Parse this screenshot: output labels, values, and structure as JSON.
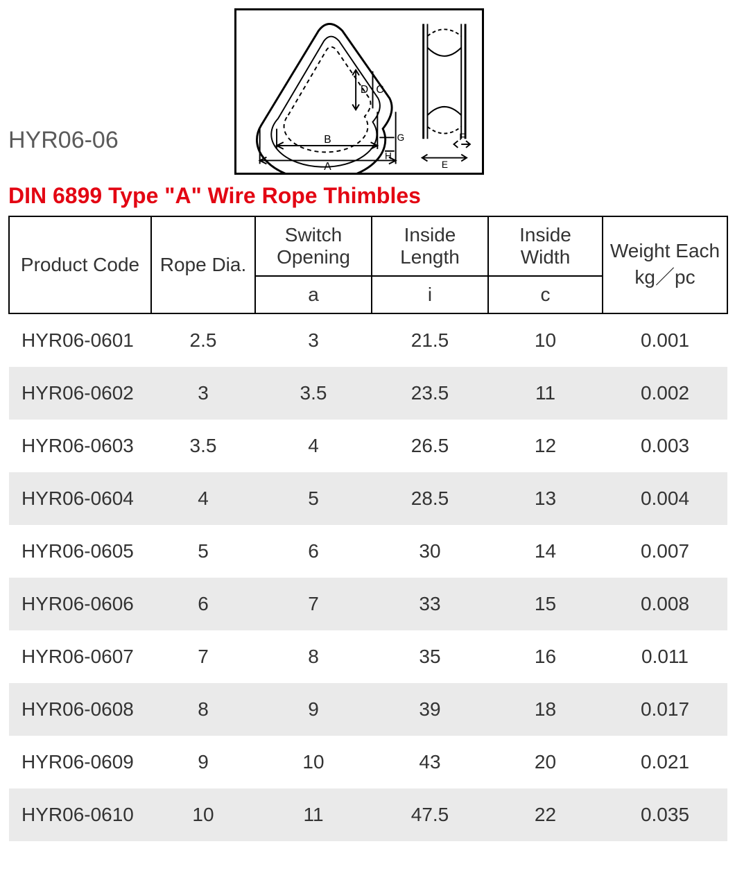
{
  "model_label": "HYR06-06",
  "title": "DIN 6899 Type \"A\" Wire Rope Thimbles",
  "title_color": "#e30613",
  "diagram": {
    "border_color": "#000000",
    "dim_labels": [
      "A",
      "B",
      "D",
      "C",
      "G",
      "H",
      "E",
      "F"
    ],
    "label_fontsize": 14
  },
  "table": {
    "columns": [
      {
        "key": "product_code",
        "label_top": "Product Code",
        "label_sub": "",
        "rowspan": 2,
        "align": "left"
      },
      {
        "key": "rope_dia",
        "label_top": "Rope Dia.",
        "label_sub": "",
        "rowspan": 2,
        "align": "center"
      },
      {
        "key": "switch_open",
        "label_top": "Switch Opening",
        "label_sub": "a",
        "rowspan": 1,
        "align": "center"
      },
      {
        "key": "inside_len",
        "label_top": "Inside Length",
        "label_sub": "i",
        "rowspan": 1,
        "align": "center"
      },
      {
        "key": "inside_wid",
        "label_top": "Inside Width",
        "label_sub": "c",
        "rowspan": 1,
        "align": "center"
      },
      {
        "key": "weight",
        "label_top": "Weight Each kg／pc",
        "label_sub": "",
        "rowspan": 2,
        "align": "center"
      }
    ],
    "header_border_color": "#000000",
    "row_even_bg": "#eaeaea",
    "row_odd_bg": "#ffffff",
    "font_size": 28,
    "text_color": "#333333",
    "rows": [
      [
        "HYR06-0601",
        "2.5",
        "3",
        "21.5",
        "10",
        "0.001"
      ],
      [
        "HYR06-0602",
        "3",
        "3.5",
        "23.5",
        "11",
        "0.002"
      ],
      [
        "HYR06-0603",
        "3.5",
        "4",
        "26.5",
        "12",
        "0.003"
      ],
      [
        "HYR06-0604",
        "4",
        "5",
        "28.5",
        "13",
        "0.004"
      ],
      [
        "HYR06-0605",
        "5",
        "6",
        "30",
        "14",
        "0.007"
      ],
      [
        "HYR06-0606",
        "6",
        "7",
        "33",
        "15",
        "0.008"
      ],
      [
        "HYR06-0607",
        "7",
        "8",
        "35",
        "16",
        "0.011"
      ],
      [
        "HYR06-0608",
        "8",
        "9",
        "39",
        "18",
        "0.017"
      ],
      [
        "HYR06-0609",
        "9",
        "10",
        "43",
        "20",
        "0.021"
      ],
      [
        "HYR06-0610",
        "10",
        "11",
        "47.5",
        "22",
        "0.035"
      ]
    ]
  }
}
